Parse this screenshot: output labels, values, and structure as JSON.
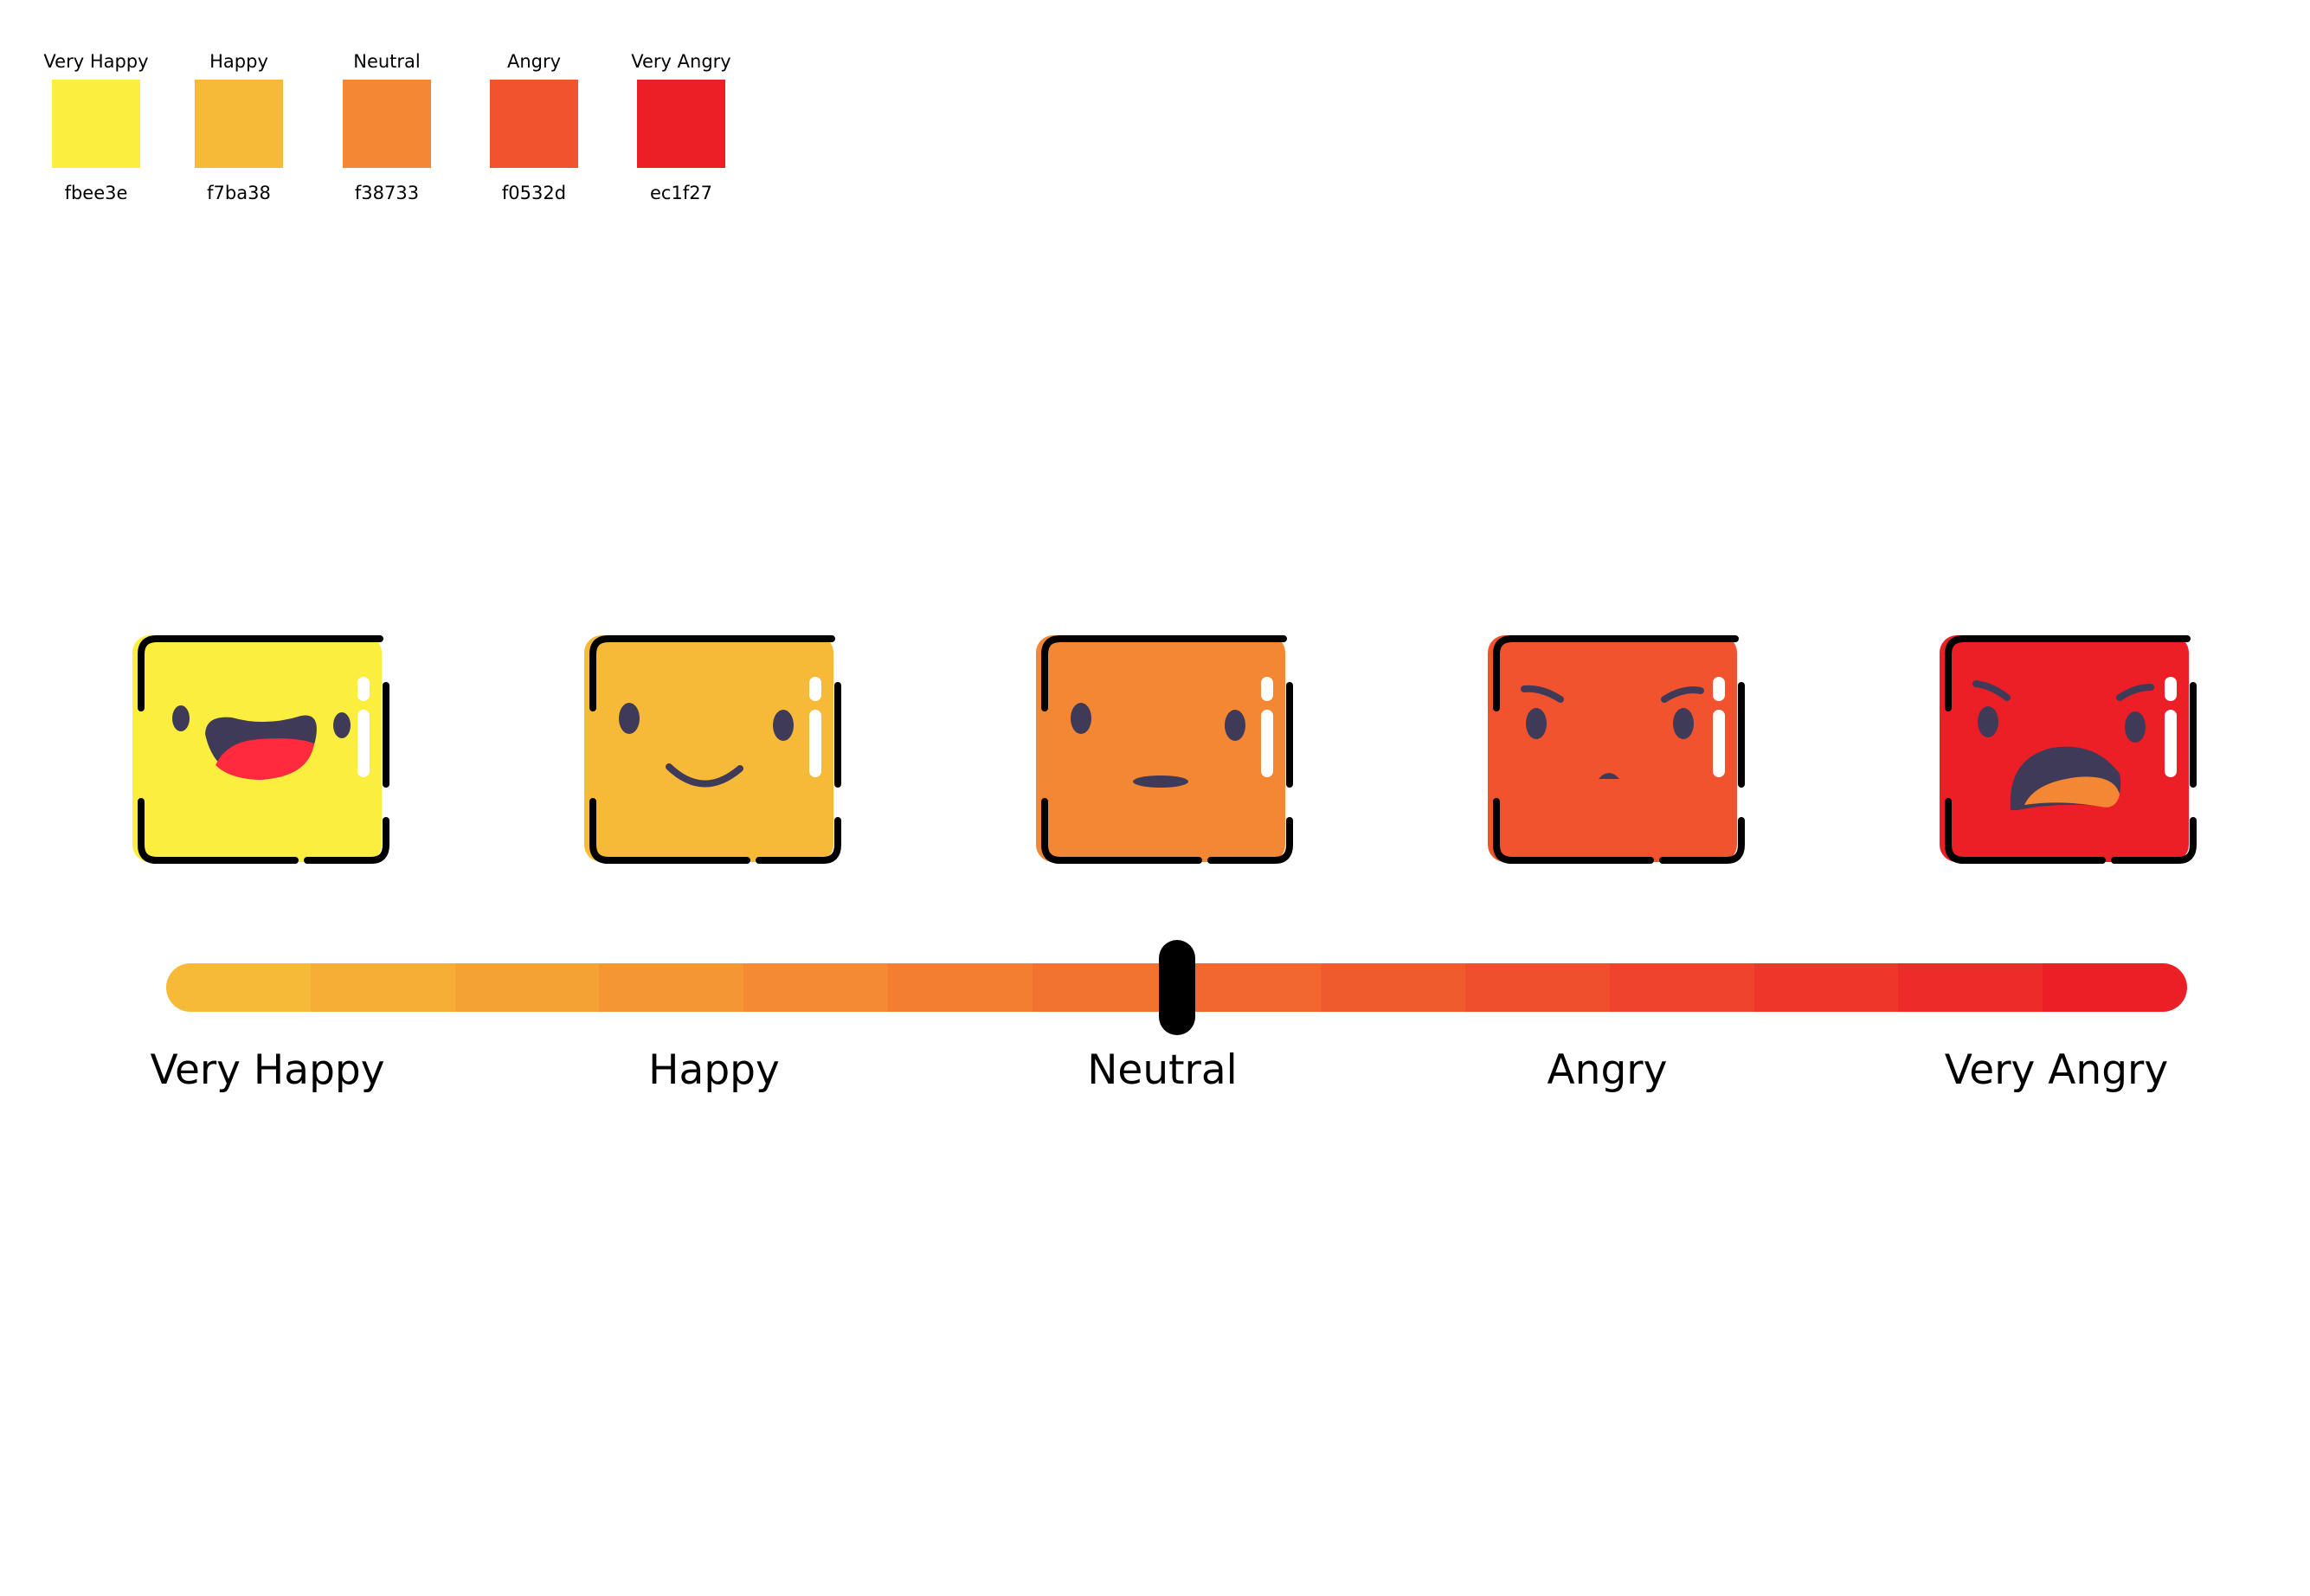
{
  "palette": [
    {
      "name": "Very Happy",
      "hex": "fbee3e",
      "color": "#fbee3e"
    },
    {
      "name": "Happy",
      "hex": "f7ba38",
      "color": "#f7ba38"
    },
    {
      "name": "Neutral",
      "hex": "f38733",
      "color": "#f38733"
    },
    {
      "name": "Angry",
      "hex": "f0532d",
      "color": "#f0532d"
    },
    {
      "name": "Very Angry",
      "hex": "ec1f27",
      "color": "#ec1f27"
    }
  ],
  "faces": [
    {
      "mood": "very-happy",
      "color": "#fbee3e"
    },
    {
      "mood": "happy",
      "color": "#f7ba38"
    },
    {
      "mood": "neutral",
      "color": "#f38733"
    },
    {
      "mood": "angry",
      "color": "#f0532d"
    },
    {
      "mood": "very-angry",
      "color": "#ec1f27"
    }
  ],
  "slider": {
    "value_fraction": 0.5,
    "gradient_start": "#f7ba38",
    "gradient_end": "#ec1f27",
    "segments": 14
  },
  "scale_labels": [
    "Very Happy",
    "Happy",
    "Neutral",
    "Angry",
    "Very Angry"
  ],
  "colors": {
    "feature": "#3f3a57",
    "outline": "#000000",
    "highlight": "#ffffff",
    "mouth_red": "#ff2a3d",
    "tongue_orange": "#f38733"
  }
}
